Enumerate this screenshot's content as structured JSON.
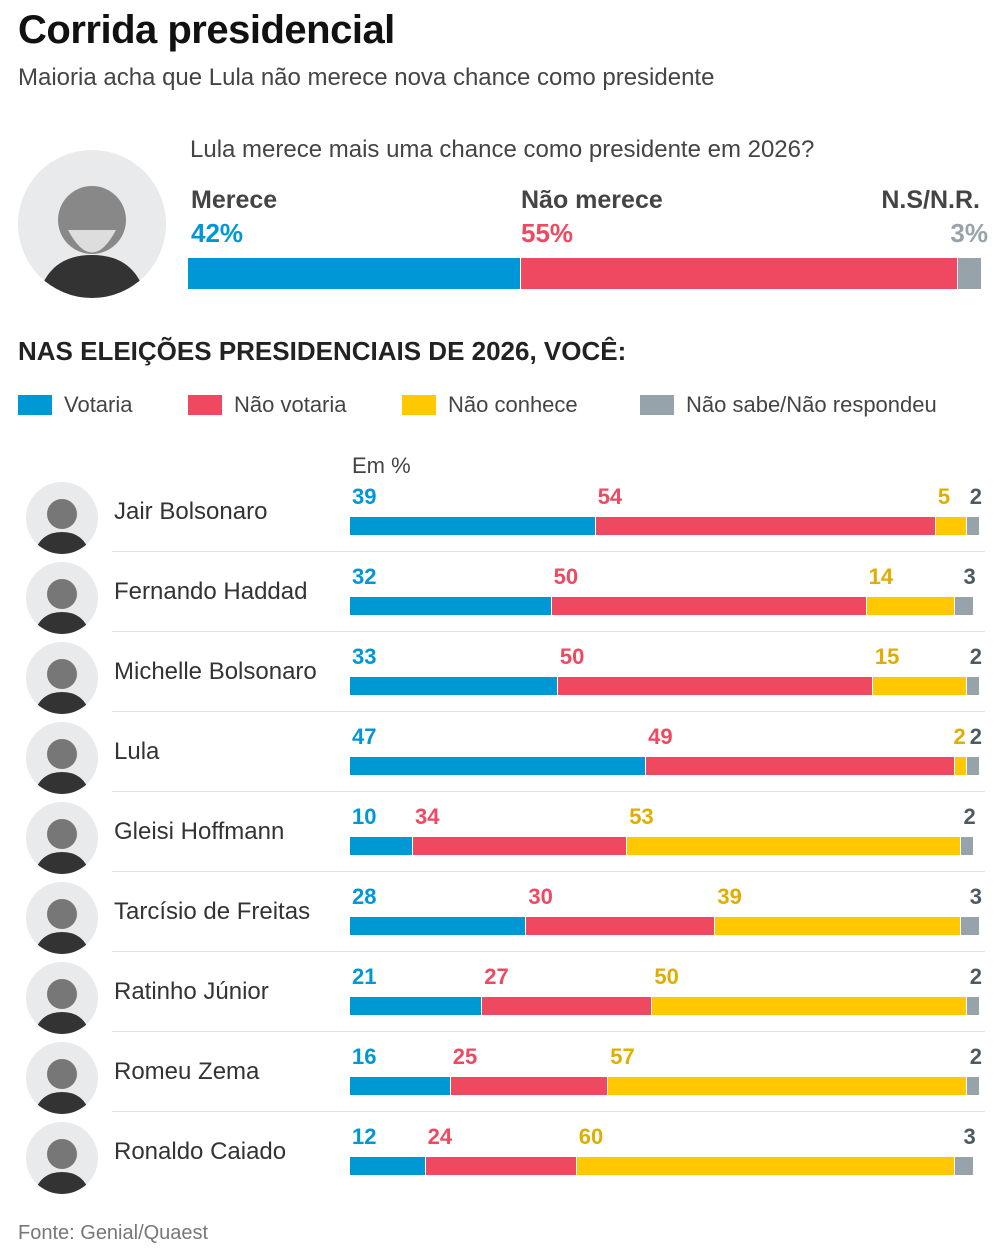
{
  "title": "Corrida presidencial",
  "subtitle": "Maioria acha que Lula não merece nova chance como presidente",
  "colors": {
    "votaria": "#0097d6",
    "nao_votaria": "#ef4962",
    "nao_conhece": "#ffc800",
    "ns": "#97a3ab",
    "ns_label": "#4d5a62",
    "nc_label": "#e0ad00"
  },
  "chart_data": [
    {
      "type": "bar",
      "orientation": "horizontal-stacked",
      "title": "Lula merece mais uma chance como presidente em 2026?",
      "categories": [
        "Merece",
        "Não merece",
        "N.S/N.R."
      ],
      "values": [
        42,
        55,
        3
      ],
      "labels": [
        "42%",
        "55%",
        "3%"
      ]
    },
    {
      "type": "bar",
      "orientation": "horizontal-stacked",
      "title": "NAS ELEIÇÕES PRESIDENCIAIS DE 2026, VOCÊ:",
      "unit": "Em %",
      "legend": "top",
      "legend_entries": [
        "Votaria",
        "Não votaria",
        "Não conhece",
        "Não sabe/Não respondeu"
      ],
      "categories": [
        "Jair Bolsonaro",
        "Fernando Haddad",
        "Michelle Bolsonaro",
        "Lula",
        "Gleisi Hoffmann",
        "Tarcísio de Freitas",
        "Ratinho Júnior",
        "Romeu Zema",
        "Ronaldo Caiado"
      ],
      "series": [
        {
          "name": "Votaria",
          "values": [
            39,
            32,
            33,
            47,
            10,
            28,
            21,
            16,
            12
          ]
        },
        {
          "name": "Não votaria",
          "values": [
            54,
            50,
            50,
            49,
            34,
            30,
            27,
            25,
            24
          ]
        },
        {
          "name": "Não conhece",
          "values": [
            5,
            14,
            15,
            2,
            53,
            39,
            50,
            57,
            60
          ]
        },
        {
          "name": "Não sabe/Não respondeu",
          "values": [
            2,
            3,
            2,
            2,
            2,
            3,
            2,
            2,
            3
          ]
        }
      ]
    }
  ],
  "source": "Fonte: Genial/Quaest"
}
